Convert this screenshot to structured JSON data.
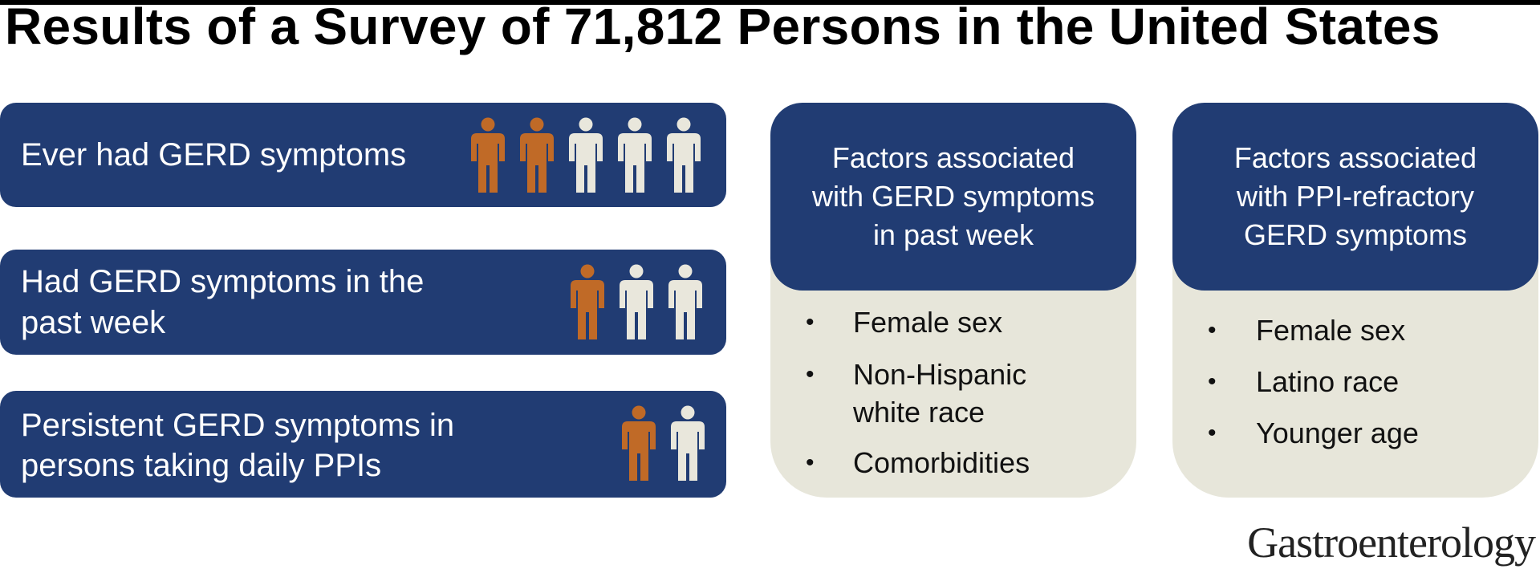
{
  "title": "Results of a Survey of 71,812 Persons in the United States",
  "stats": [
    {
      "label": "Ever had GERD symptoms",
      "highlighted_people": 2,
      "total_people": 5
    },
    {
      "label_lines": [
        "Had GERD symptoms in the",
        "past week"
      ],
      "highlighted_people": 1,
      "total_people": 3
    },
    {
      "label_lines": [
        "Persistent GERD symptoms in",
        "persons taking daily PPIs"
      ],
      "highlighted_people": 1,
      "total_people": 2
    }
  ],
  "factors": [
    {
      "heading_lines": [
        "Factors associated",
        "with GERD symptoms",
        "in past week"
      ],
      "items": [
        {
          "lines": [
            "Female sex"
          ]
        },
        {
          "lines": [
            "Non-Hispanic",
            "white race"
          ]
        },
        {
          "lines": [
            "Comorbidities"
          ]
        }
      ]
    },
    {
      "heading_lines": [
        "Factors associated",
        "with PPI-refractory",
        "GERD symptoms"
      ],
      "items": [
        {
          "lines": [
            "Female sex"
          ]
        },
        {
          "lines": [
            "Latino race"
          ]
        },
        {
          "lines": [
            "Younger age"
          ]
        }
      ]
    }
  ],
  "bullet_char": "•",
  "brand": "Gastroenterology",
  "colors": {
    "navy": "#213c73",
    "highlight_person": "#c06a27",
    "normal_person": "#e9e7dc",
    "card_body": "#e7e6da"
  },
  "icons": {
    "person": "person-icon"
  }
}
